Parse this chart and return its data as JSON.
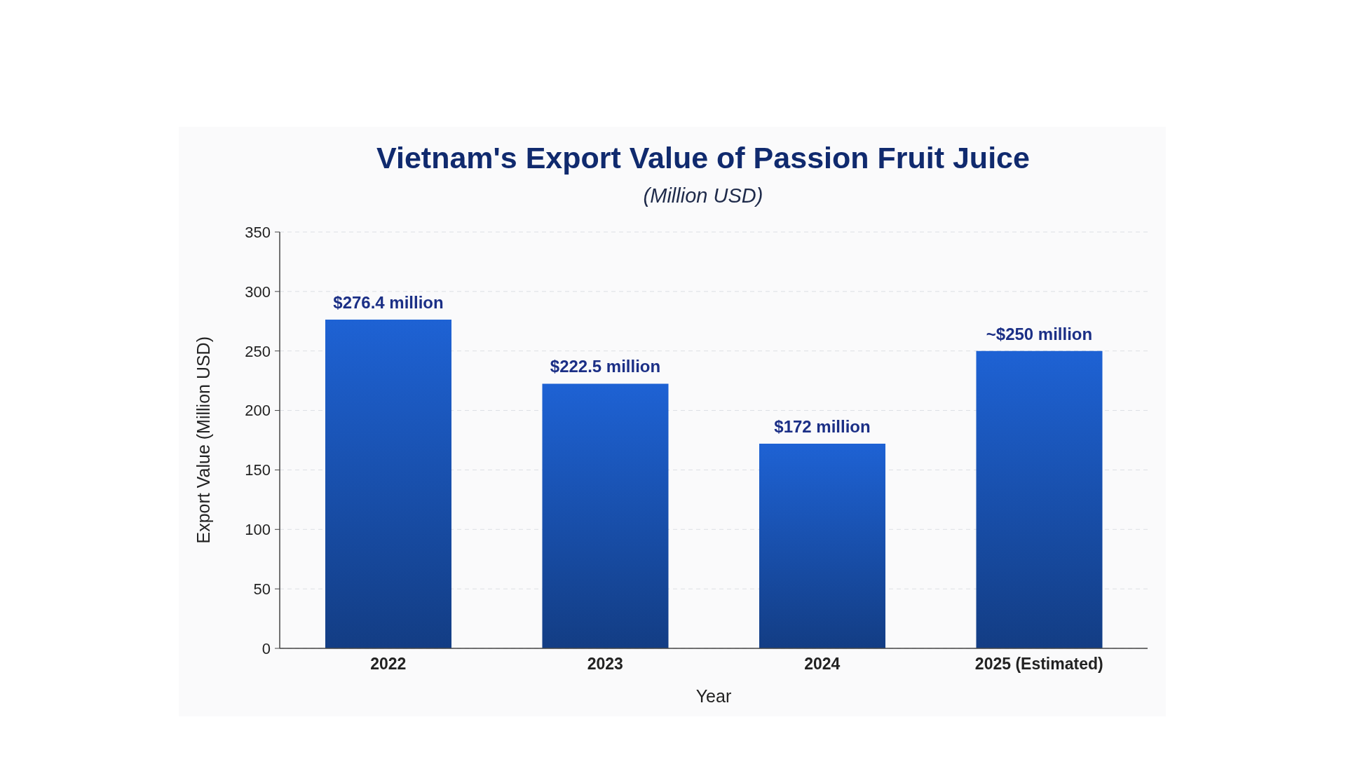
{
  "chart_data": {
    "type": "bar",
    "title": "Vietnam's Export Value of Passion Fruit Juice",
    "subtitle": "(Million USD)",
    "xlabel": "Year",
    "ylabel": "Export Value (Million USD)",
    "categories": [
      "2022",
      "2023",
      "2024",
      "2025 (Estimated)"
    ],
    "values": [
      276.4,
      222.5,
      172,
      250
    ],
    "value_labels": [
      "$276.4 million",
      "$222.5 million",
      "$172 million",
      "~$250 million"
    ],
    "color": "#1a55b8",
    "ylim": [
      0,
      350
    ],
    "yticks": [
      0,
      50,
      100,
      150,
      200,
      250,
      300,
      350
    ],
    "grid": "y"
  }
}
